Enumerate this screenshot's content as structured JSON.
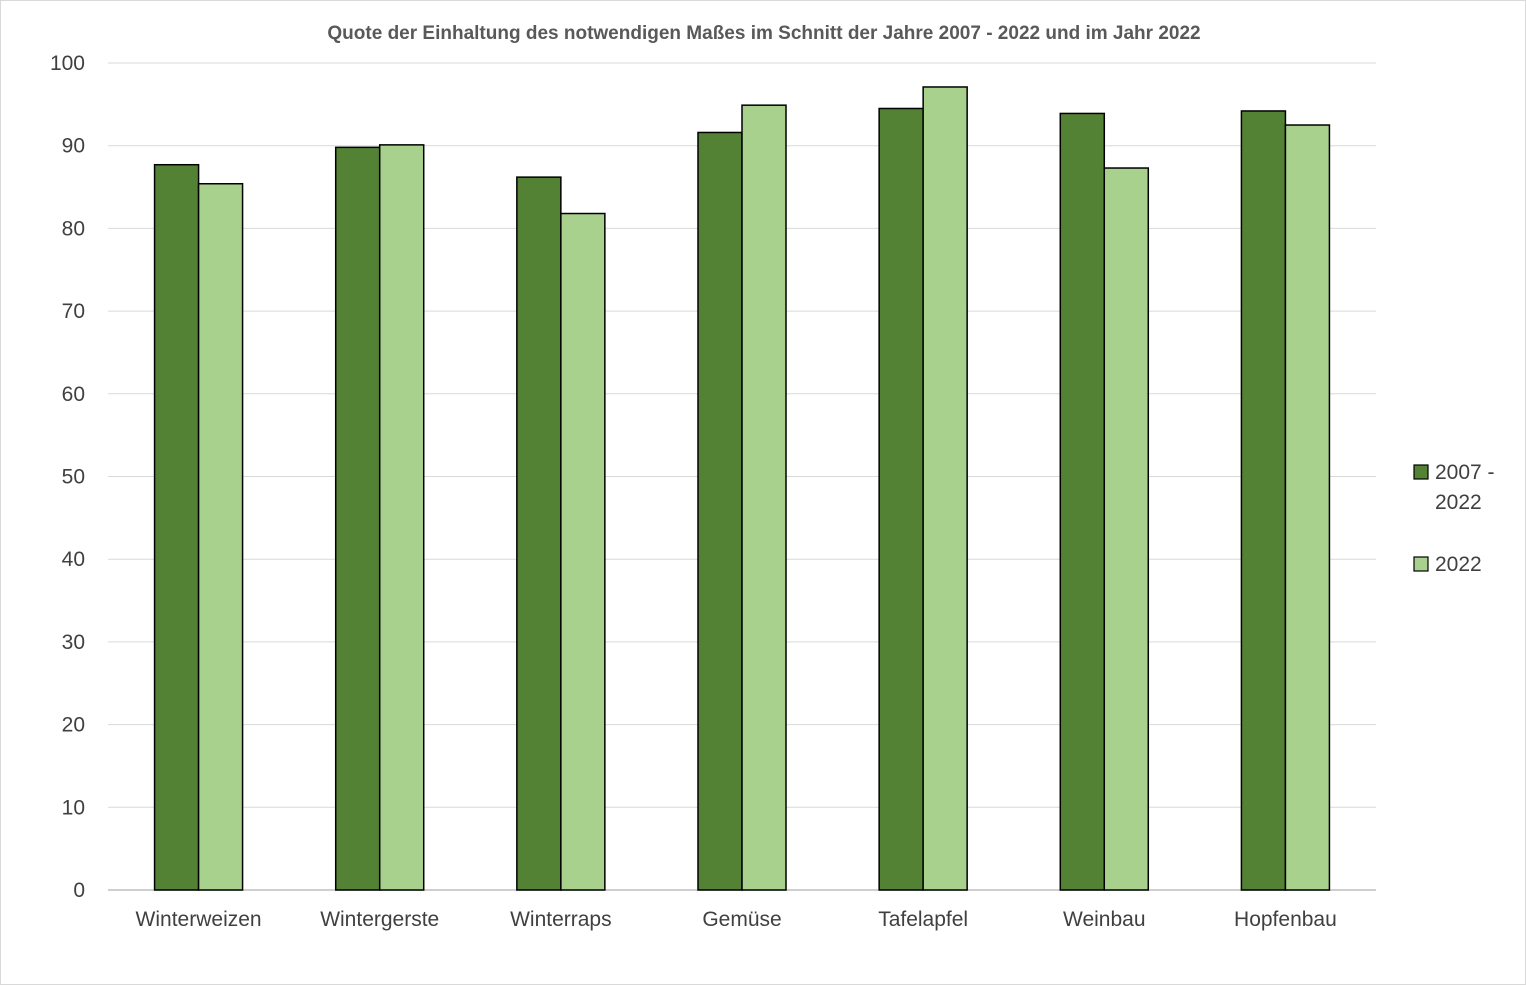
{
  "chart_data": {
    "type": "bar",
    "title": "Quote der Einhaltung des notwendigen Maßes im Schnitt der Jahre 2007 - 2022 und im Jahr 2022",
    "xlabel": "",
    "ylabel": "",
    "categories": [
      "Winterweizen",
      "Wintergerste",
      "Winterraps",
      "Gemüse",
      "Tafelapfel",
      "Weinbau",
      "Hopfenbau"
    ],
    "series": [
      {
        "name": "2007 - 2022",
        "legend_lines": [
          "2007 -",
          "2022"
        ],
        "color": "#548235",
        "values": [
          87.7,
          89.8,
          86.2,
          91.6,
          94.5,
          93.9,
          94.2
        ]
      },
      {
        "name": "2022",
        "legend_lines": [
          "2022"
        ],
        "color": "#a9d18e",
        "values": [
          85.4,
          90.1,
          81.8,
          94.9,
          97.1,
          87.3,
          92.5
        ]
      }
    ],
    "ylim": [
      0,
      100
    ],
    "yticks": [
      0,
      10,
      20,
      30,
      40,
      50,
      60,
      70,
      80,
      90,
      100
    ],
    "grid": true,
    "legend_position": "right"
  }
}
